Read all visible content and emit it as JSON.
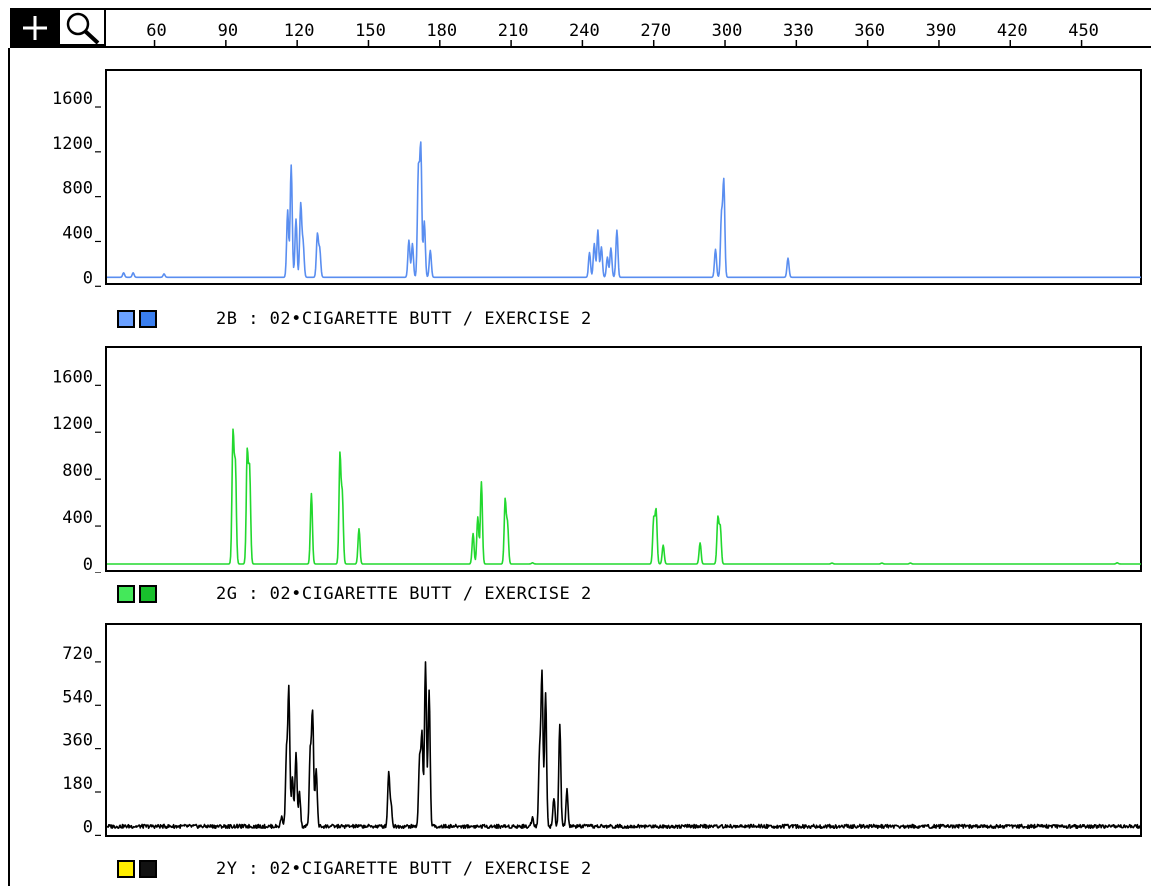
{
  "toolbar": {
    "crosshair_tool": "crosshair-icon",
    "zoom_tool": "magnifier-icon"
  },
  "ruler": {
    "ticks": [
      60,
      90,
      120,
      150,
      180,
      210,
      240,
      270,
      300,
      330,
      360,
      390,
      420,
      450
    ],
    "range": [
      40,
      475
    ]
  },
  "chart_data": [
    {
      "type": "line",
      "title": "2B : 02•CIGARETTE BUTT / EXERCISE 2",
      "color": "#5a8ef0",
      "swatch_colors": [
        "#6aa0ff",
        "#3a7ff0"
      ],
      "yticks": [
        0,
        400,
        800,
        1200,
        1600
      ],
      "ylim": [
        -60,
        1850
      ],
      "xlim": [
        40,
        475
      ],
      "baseline": 0,
      "noise": 0,
      "peaks": [
        [
          47,
          40
        ],
        [
          51,
          40
        ],
        [
          64,
          30
        ],
        [
          116,
          600
        ],
        [
          117.5,
          1000
        ],
        [
          119.5,
          520
        ],
        [
          121.5,
          650
        ],
        [
          122.5,
          300
        ],
        [
          128.5,
          380
        ],
        [
          129.5,
          250
        ],
        [
          167,
          330
        ],
        [
          168.5,
          300
        ],
        [
          171,
          950
        ],
        [
          172,
          1150
        ],
        [
          173.5,
          500
        ],
        [
          176,
          240
        ],
        [
          243,
          220
        ],
        [
          245,
          300
        ],
        [
          246.5,
          420
        ],
        [
          248,
          270
        ],
        [
          250.5,
          180
        ],
        [
          252,
          260
        ],
        [
          254.5,
          420
        ],
        [
          296,
          250
        ],
        [
          298.5,
          550
        ],
        [
          299.5,
          850
        ],
        [
          326.5,
          170
        ]
      ]
    },
    {
      "type": "line",
      "title": "2G : 02•CIGARETTE BUTT / EXERCISE 2",
      "color": "#22d82e",
      "swatch_colors": [
        "#44e85a",
        "#18c02c"
      ],
      "yticks": [
        0,
        400,
        800,
        1200,
        1600
      ],
      "ylim": [
        -60,
        1850
      ],
      "xlim": [
        40,
        475
      ],
      "baseline": 0,
      "noise": 0,
      "peaks": [
        [
          93,
          1100
        ],
        [
          94,
          830
        ],
        [
          99,
          940
        ],
        [
          100,
          800
        ],
        [
          126,
          600
        ],
        [
          138,
          920
        ],
        [
          139,
          580
        ],
        [
          146,
          300
        ],
        [
          194,
          260
        ],
        [
          196,
          400
        ],
        [
          197.5,
          700
        ],
        [
          207.5,
          540
        ],
        [
          208.5,
          340
        ],
        [
          219,
          10
        ],
        [
          270,
          380
        ],
        [
          271,
          450
        ],
        [
          274,
          160
        ],
        [
          289.5,
          180
        ],
        [
          297,
          390
        ],
        [
          298,
          310
        ],
        [
          345,
          8
        ],
        [
          366,
          8
        ],
        [
          378,
          8
        ],
        [
          465,
          10
        ]
      ]
    },
    {
      "type": "line",
      "title": "2Y : 02•CIGARETTE BUTT / EXERCISE 2",
      "color": "#000000",
      "swatch_colors": [
        "#ffee00",
        "#111111"
      ],
      "yticks": [
        0,
        180,
        360,
        540,
        720
      ],
      "ylim": [
        -40,
        840
      ],
      "xlim": [
        40,
        475
      ],
      "baseline": 0,
      "noise": 8,
      "peaks": [
        [
          113.5,
          40
        ],
        [
          115.5,
          300
        ],
        [
          116.5,
          560
        ],
        [
          118,
          200
        ],
        [
          119.5,
          300
        ],
        [
          121,
          140
        ],
        [
          125.5,
          300
        ],
        [
          126.5,
          470
        ],
        [
          128,
          240
        ],
        [
          158.5,
          220
        ],
        [
          159.5,
          90
        ],
        [
          171.5,
          280
        ],
        [
          172.5,
          380
        ],
        [
          174,
          680
        ],
        [
          175.5,
          560
        ],
        [
          219,
          40
        ],
        [
          222,
          300
        ],
        [
          223,
          630
        ],
        [
          224.5,
          560
        ],
        [
          228,
          120
        ],
        [
          230.5,
          420
        ],
        [
          233.5,
          150
        ]
      ]
    }
  ]
}
